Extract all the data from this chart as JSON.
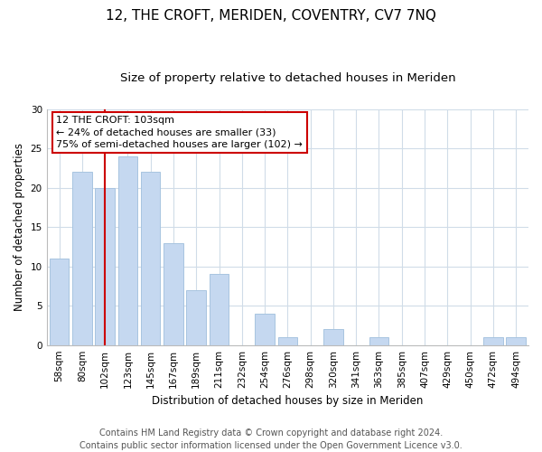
{
  "title": "12, THE CROFT, MERIDEN, COVENTRY, CV7 7NQ",
  "subtitle": "Size of property relative to detached houses in Meriden",
  "xlabel": "Distribution of detached houses by size in Meriden",
  "ylabel": "Number of detached properties",
  "categories": [
    "58sqm",
    "80sqm",
    "102sqm",
    "123sqm",
    "145sqm",
    "167sqm",
    "189sqm",
    "211sqm",
    "232sqm",
    "254sqm",
    "276sqm",
    "298sqm",
    "320sqm",
    "341sqm",
    "363sqm",
    "385sqm",
    "407sqm",
    "429sqm",
    "450sqm",
    "472sqm",
    "494sqm"
  ],
  "values": [
    11,
    22,
    20,
    24,
    22,
    13,
    7,
    9,
    0,
    4,
    1,
    0,
    2,
    0,
    1,
    0,
    0,
    0,
    0,
    1,
    1
  ],
  "bar_color": "#c5d8f0",
  "bar_edge_color": "#a8c4e0",
  "vline_x_index": 2,
  "vline_color": "#cc0000",
  "annotation_text": "12 THE CROFT: 103sqm\n← 24% of detached houses are smaller (33)\n75% of semi-detached houses are larger (102) →",
  "annotation_box_edge_color": "#cc0000",
  "annotation_box_face_color": "#ffffff",
  "ylim": [
    0,
    30
  ],
  "yticks": [
    0,
    5,
    10,
    15,
    20,
    25,
    30
  ],
  "footer_text": "Contains HM Land Registry data © Crown copyright and database right 2024.\nContains public sector information licensed under the Open Government Licence v3.0.",
  "bg_color": "#ffffff",
  "grid_color": "#d0dce8",
  "title_fontsize": 11,
  "subtitle_fontsize": 9.5,
  "axis_label_fontsize": 8.5,
  "tick_fontsize": 7.5,
  "annotation_fontsize": 8,
  "footer_fontsize": 7
}
